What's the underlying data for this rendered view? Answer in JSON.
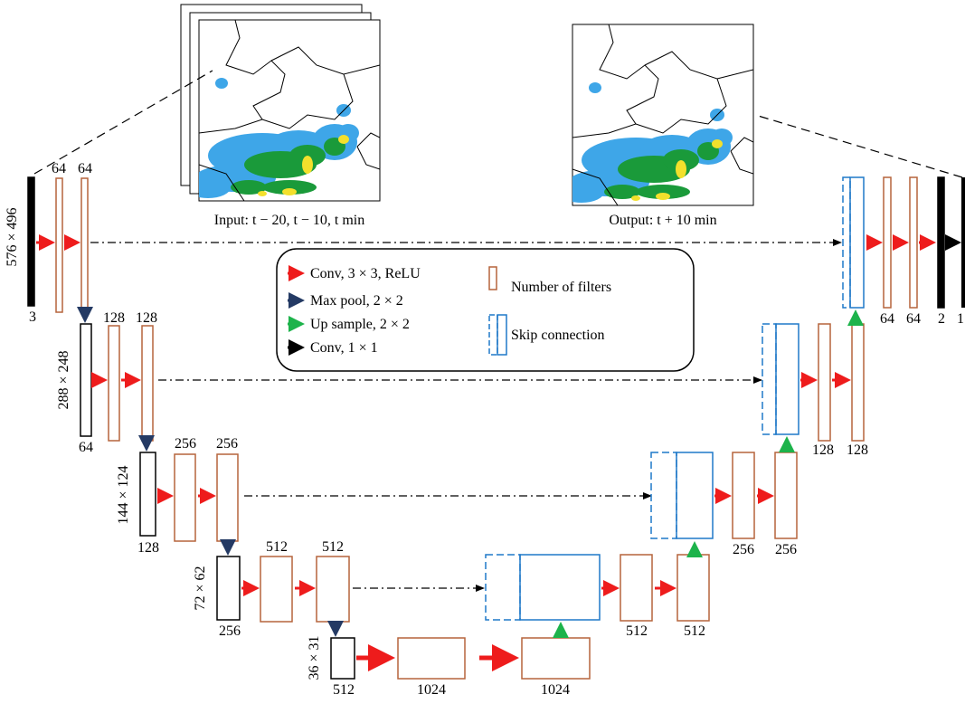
{
  "images": {
    "input_caption": "Input: t − 20, t − 10, t min",
    "output_caption": "Output: t + 10 min"
  },
  "legend": {
    "conv3": "Conv, 3 × 3, ReLU",
    "maxpool": "Max pool, 2 × 2",
    "upsample": "Up sample, 2 × 2",
    "conv1": "Conv, 1 × 1",
    "filters": "Number of filters",
    "skip": "Skip connection"
  },
  "encoder": [
    {
      "size": "576 × 496",
      "channels": "3",
      "filters": [
        "64",
        "64"
      ]
    },
    {
      "size": "288 × 248",
      "channels": "64",
      "filters": [
        "128",
        "128"
      ]
    },
    {
      "size": "144 × 124",
      "channels": "128",
      "filters": [
        "256",
        "256"
      ]
    },
    {
      "size": "72 × 62",
      "channels": "256",
      "filters": [
        "512",
        "512"
      ]
    },
    {
      "size": "36 × 31",
      "channels": "512",
      "filters": [
        "1024",
        "1024"
      ]
    }
  ],
  "decoder": [
    {
      "filters": [
        "512",
        "512"
      ]
    },
    {
      "filters": [
        "256",
        "256"
      ]
    },
    {
      "filters": [
        "128",
        "128"
      ]
    },
    {
      "filters": [
        "64",
        "64"
      ]
    }
  ],
  "output": {
    "labels": [
      "2",
      "1"
    ]
  }
}
